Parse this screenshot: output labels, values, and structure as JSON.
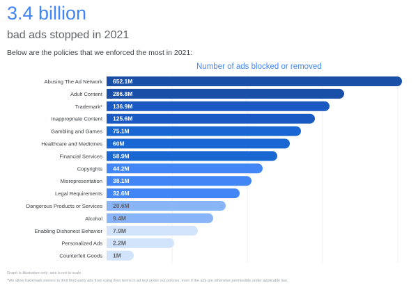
{
  "header": {
    "headline": "3.4 billion",
    "subheadline": "bad ads stopped in 2021",
    "intro": "Below are the policies that we enforced the most in 2021:"
  },
  "chart_data": {
    "type": "bar",
    "orientation": "horizontal",
    "title": "Number of ads blocked or removed",
    "unit": "M",
    "grid": true,
    "axis_to_scale": false,
    "categories": [
      "Abusing The Ad Network",
      "Adult Content",
      "Trademark*",
      "Inappropriate Content",
      "Gambling and Games",
      "Healthcare and Medicines",
      "Financial Services",
      "Copyrights",
      "Misrepresentation",
      "Legal Requirements",
      "Dangerous Products or Services",
      "Alcohol",
      "Enabling Dishonest Behavior",
      "Personalized Ads",
      "Counterfeit Goods"
    ],
    "values": [
      652.1,
      286.8,
      136.9,
      125.6,
      75.1,
      60,
      58.9,
      44.2,
      38.1,
      32.6,
      20.6,
      9.4,
      7.9,
      2.2,
      1
    ],
    "labels": [
      "652.1M",
      "286.8M",
      "136.9M",
      "125.6M",
      "75.1M",
      "60M",
      "58.9M",
      "44.2M",
      "38.1M",
      "32.6M",
      "20.6M",
      "9.4M",
      "7.9M",
      "2.2M",
      "1M"
    ],
    "colors": [
      "#1a4fa8",
      "#1a4fa8",
      "#1a58c2",
      "#1a58c2",
      "#1967d2",
      "#1967d2",
      "#1967d2",
      "#4285f4",
      "#4285f4",
      "#4285f4",
      "#8ab4f8",
      "#8ab4f8",
      "#d2e3fc",
      "#d2e3fc",
      "#d2e3fc"
    ]
  },
  "footer": {
    "note": "Graph is illustrative only; axis is not to scale",
    "footnote": "*We allow trademark owners to limit third-party ads from using their terms in ad text under our policies, even if the ads are otherwise permissible under applicable law."
  }
}
